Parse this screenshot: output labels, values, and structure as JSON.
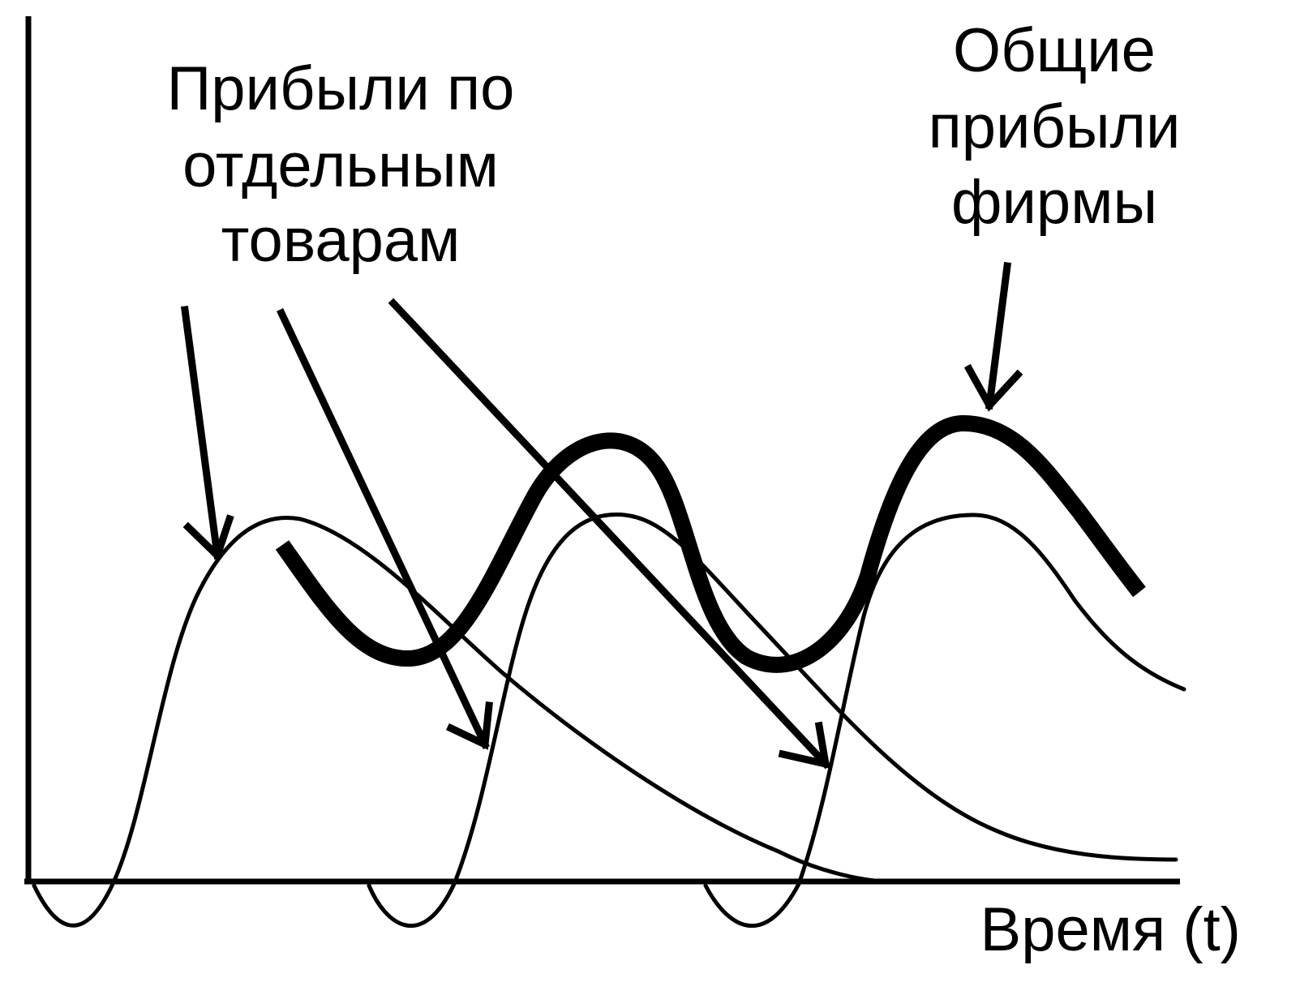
{
  "labels": {
    "product_profits": [
      "Прибыли по",
      "отдельным",
      "товарам"
    ],
    "total_profits": [
      "Общие",
      "прибыли",
      "фирмы"
    ],
    "time_axis": "Время (t)"
  },
  "colors": {
    "ink": "#000000",
    "background": "#ffffff"
  }
}
